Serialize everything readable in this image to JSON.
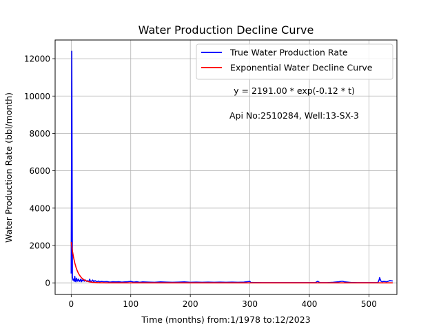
{
  "chart_data": {
    "type": "line",
    "title": "Water Production Decline Curve",
    "xlabel": "Time (months) from:1/1978 to:12/2023",
    "ylabel": "Water Production Rate (bbl/month)",
    "xlim": [
      -27,
      547
    ],
    "ylim": [
      -620,
      13000
    ],
    "xticks": [
      0,
      100,
      200,
      300,
      400,
      500
    ],
    "yticks": [
      0,
      2000,
      4000,
      6000,
      8000,
      10000,
      12000
    ],
    "grid": true,
    "legend_position": "top-right",
    "annotations": [
      "y = 2191.00 * exp(-0.12 * t)",
      "Api No:2510284, Well:13-SX-3"
    ],
    "series": [
      {
        "name": "True Water Production Rate",
        "color": "#0000ff",
        "x": [
          0,
          1,
          2,
          3,
          4,
          5,
          6,
          7,
          8,
          9,
          10,
          11,
          12,
          13,
          14,
          15,
          16,
          17,
          18,
          19,
          20,
          22,
          24,
          26,
          28,
          30,
          31,
          32,
          34,
          36,
          38,
          40,
          42,
          44,
          46,
          48,
          50,
          55,
          60,
          65,
          70,
          75,
          80,
          85,
          90,
          95,
          100,
          105,
          110,
          115,
          120,
          130,
          140,
          150,
          160,
          170,
          180,
          190,
          200,
          210,
          220,
          230,
          240,
          250,
          260,
          270,
          280,
          290,
          300,
          302,
          304,
          310,
          320,
          340,
          360,
          380,
          400,
          410,
          414,
          416,
          418,
          420,
          430,
          440,
          450,
          455,
          460,
          470,
          480,
          490,
          500,
          505,
          510,
          515,
          517,
          518,
          520,
          522,
          525,
          530,
          535,
          540
        ],
        "y": [
          500,
          12400,
          300,
          150,
          200,
          80,
          350,
          100,
          60,
          250,
          120,
          90,
          200,
          150,
          80,
          120,
          200,
          60,
          150,
          100,
          180,
          90,
          150,
          80,
          120,
          60,
          200,
          100,
          80,
          150,
          60,
          120,
          80,
          60,
          100,
          50,
          80,
          60,
          70,
          40,
          60,
          50,
          60,
          40,
          50,
          60,
          80,
          40,
          60,
          30,
          50,
          40,
          30,
          50,
          40,
          30,
          40,
          50,
          30,
          40,
          30,
          40,
          30,
          40,
          30,
          40,
          30,
          40,
          80,
          10,
          20,
          15,
          10,
          10,
          10,
          10,
          10,
          10,
          90,
          40,
          10,
          10,
          10,
          30,
          60,
          90,
          50,
          20,
          10,
          10,
          10,
          10,
          10,
          10,
          150,
          280,
          100,
          60,
          80,
          60,
          120,
          100
        ]
      },
      {
        "name": "Exponential Water Decline Curve",
        "color": "#ff0000",
        "function": "2191.00 * exp(-0.12 * t)",
        "x": [
          0,
          540
        ],
        "x_step": 2
      }
    ]
  }
}
